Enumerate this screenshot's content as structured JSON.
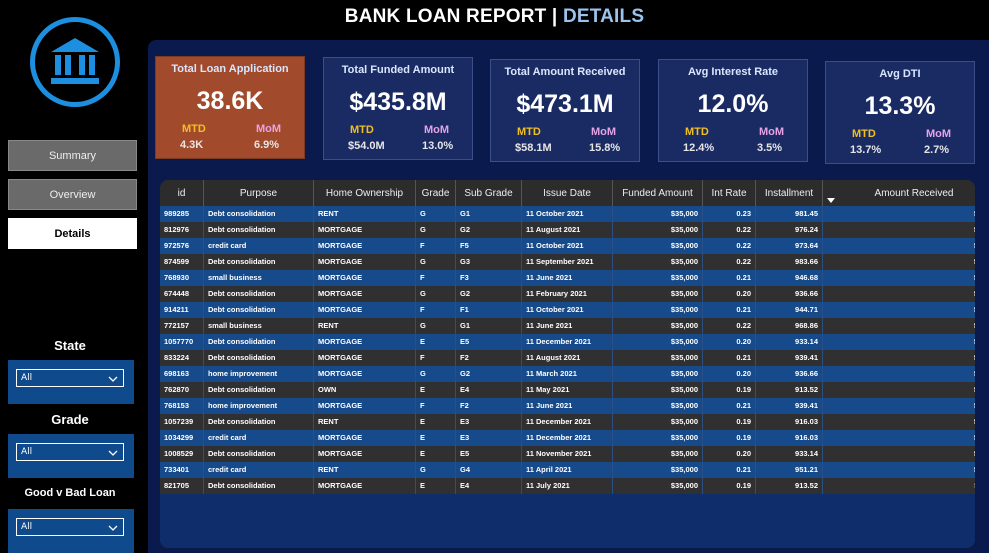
{
  "header": {
    "title": "BANK LOAN REPORT",
    "separator": "|",
    "highlight": "DETAILS"
  },
  "nav": [
    "Summary",
    "Overview",
    "Details"
  ],
  "kpis": [
    {
      "title": "Total Loan Application",
      "value": "38.6K",
      "mtd_label": "MTD",
      "mtd": "4.3K",
      "mom_label": "MoM",
      "mom": "6.9%"
    },
    {
      "title": "Total Funded Amount",
      "value": "$435.8M",
      "mtd_label": "MTD",
      "mtd": "$54.0M",
      "mom_label": "MoM",
      "mom": "13.0%"
    },
    {
      "title": "Total Amount Received",
      "value": "$473.1M",
      "mtd_label": "MTD",
      "mtd": "$58.1M",
      "mom_label": "MoM",
      "mom": "15.8%"
    },
    {
      "title": "Avg Interest Rate",
      "value": "12.0%",
      "mtd_label": "MTD",
      "mtd": "12.4%",
      "mom_label": "MoM",
      "mom": "3.5%"
    },
    {
      "title": "Avg DTI",
      "value": "13.3%",
      "mtd_label": "MTD",
      "mtd": "13.7%",
      "mom_label": "MoM",
      "mom": "2.7%"
    }
  ],
  "filters": [
    {
      "label": "State",
      "value": "All"
    },
    {
      "label": "Grade",
      "value": "All"
    },
    {
      "label": "Good v Bad Loan",
      "value": "All"
    }
  ],
  "table": {
    "columns": [
      "id",
      "Purpose",
      "Home Ownership",
      "Grade",
      "Sub Grade",
      "Issue Date",
      "Funded Amount",
      "Int Rate",
      "Installment",
      "Amount Received"
    ],
    "rows": [
      [
        "989285",
        "Debt consolidation",
        "RENT",
        "G",
        "G1",
        "11 October 2021",
        "$35,000",
        "0.23",
        "981.45",
        "$58,564"
      ],
      [
        "812976",
        "Debt consolidation",
        "MORTGAGE",
        "G",
        "G2",
        "11 August 2021",
        "$35,000",
        "0.22",
        "976.24",
        "$58,480"
      ],
      [
        "972576",
        "credit card",
        "MORTGAGE",
        "F",
        "F5",
        "11 October 2021",
        "$35,000",
        "0.22",
        "973.64",
        "$57,835"
      ],
      [
        "874599",
        "Debt consolidation",
        "MORTGAGE",
        "G",
        "G3",
        "11 September 2021",
        "$35,000",
        "0.22",
        "983.66",
        "$56,849"
      ],
      [
        "768930",
        "small business",
        "MORTGAGE",
        "F",
        "F3",
        "11 June 2021",
        "$35,000",
        "0.21",
        "946.68",
        "$56,663"
      ],
      [
        "674448",
        "Debt consolidation",
        "MORTGAGE",
        "G",
        "G2",
        "11 February 2021",
        "$35,000",
        "0.20",
        "936.66",
        "$56,199"
      ],
      [
        "914211",
        "Debt consolidation",
        "MORTGAGE",
        "F",
        "F1",
        "11 October 2021",
        "$35,000",
        "0.21",
        "944.71",
        "$55,907"
      ],
      [
        "772157",
        "small business",
        "RENT",
        "G",
        "G1",
        "11 June 2021",
        "$35,000",
        "0.22",
        "968.86",
        "$55,769"
      ],
      [
        "1057770",
        "Debt consolidation",
        "MORTGAGE",
        "E",
        "E5",
        "11 December 2021",
        "$35,000",
        "0.20",
        "933.14",
        "$55,139"
      ],
      [
        "833224",
        "Debt consolidation",
        "MORTGAGE",
        "F",
        "F2",
        "11 August 2021",
        "$35,000",
        "0.21",
        "939.41",
        "$55,106"
      ],
      [
        "698163",
        "home improvement",
        "MORTGAGE",
        "G",
        "G2",
        "11 March 2021",
        "$35,000",
        "0.20",
        "936.66",
        "$54,774"
      ],
      [
        "762870",
        "Debt consolidation",
        "OWN",
        "E",
        "E4",
        "11 May 2021",
        "$35,000",
        "0.19",
        "913.52",
        "$54,746"
      ],
      [
        "768153",
        "home improvement",
        "MORTGAGE",
        "F",
        "F2",
        "11 June 2021",
        "$35,000",
        "0.21",
        "939.41",
        "$54,715"
      ],
      [
        "1057239",
        "Debt consolidation",
        "RENT",
        "E",
        "E3",
        "11 December 2021",
        "$35,000",
        "0.19",
        "916.03",
        "$54,427"
      ],
      [
        "1034299",
        "credit card",
        "MORTGAGE",
        "E",
        "E3",
        "11 December 2021",
        "$35,000",
        "0.19",
        "916.03",
        "$54,287"
      ],
      [
        "1008529",
        "Debt consolidation",
        "MORTGAGE",
        "E",
        "E5",
        "11 November 2021",
        "$35,000",
        "0.20",
        "933.14",
        "$54,182"
      ],
      [
        "733401",
        "credit card",
        "RENT",
        "G",
        "G4",
        "11 April 2021",
        "$35,000",
        "0.21",
        "951.21",
        "$54,132"
      ],
      [
        "821705",
        "Debt consolidation",
        "MORTGAGE",
        "E",
        "E4",
        "11 July 2021",
        "$35,000",
        "0.19",
        "913.52",
        "$54,112"
      ]
    ]
  }
}
